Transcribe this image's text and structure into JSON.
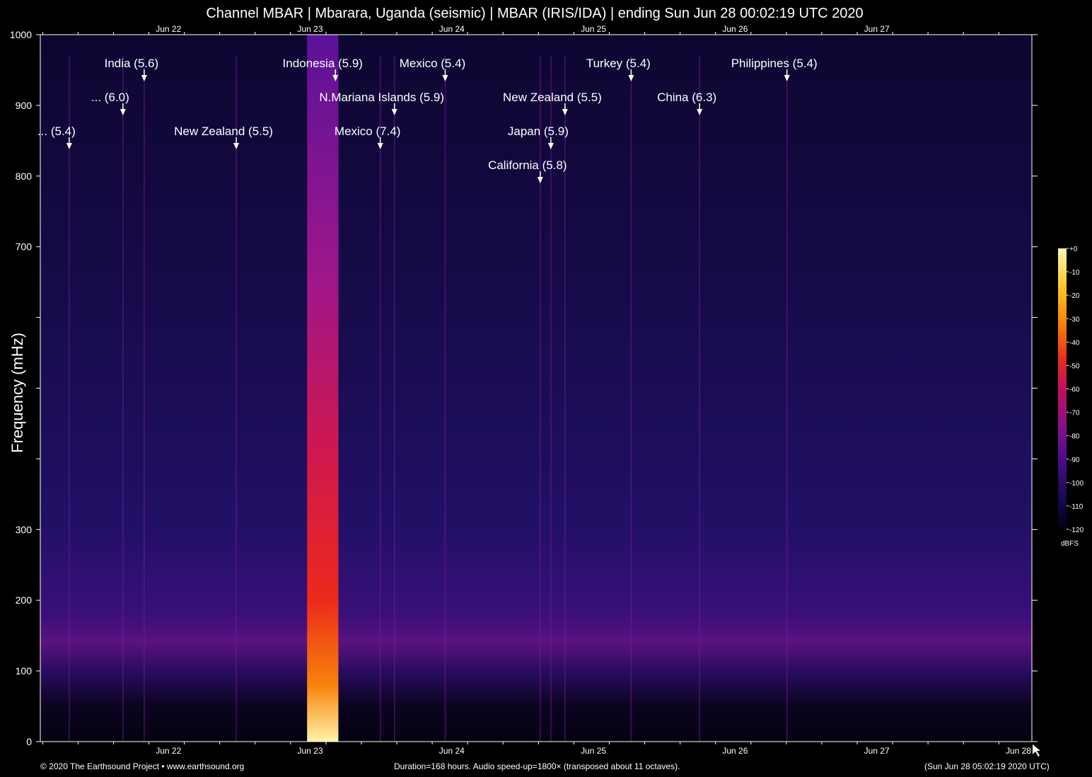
{
  "chart_data": {
    "type": "heatmap",
    "title": "Channel MBAR | Mbarara, Uganda (seismic) | MBAR (IRIS/IDA) | ending Sun Jun 28 00:02:19 UTC 2020",
    "xlabel": "",
    "ylabel": "Frequency (mHz)",
    "ylim": [
      0,
      1000
    ],
    "xlim_hours": [
      0,
      168
    ],
    "y_ticks": [
      {
        "value": 0,
        "label": "0"
      },
      {
        "value": 100,
        "label": "100"
      },
      {
        "value": 200,
        "label": "200"
      },
      {
        "value": 300,
        "label": "300"
      },
      {
        "value": 400,
        "label": ""
      },
      {
        "value": 500,
        "label": ""
      },
      {
        "value": 600,
        "label": ""
      },
      {
        "value": 700,
        "label": "700"
      },
      {
        "value": 800,
        "label": "800"
      },
      {
        "value": 900,
        "label": "900"
      },
      {
        "value": 1000,
        "label": "1000"
      }
    ],
    "x_day_labels": [
      {
        "label": "Jun 22",
        "hour": 19.2
      },
      {
        "label": "Jun 23",
        "hour": 43.2
      },
      {
        "label": "Jun 24",
        "hour": 67.2
      },
      {
        "label": "Jun 25",
        "hour": 91.2
      },
      {
        "label": "Jun 26",
        "hour": 115.2
      },
      {
        "label": "Jun 27",
        "hour": 139.2
      },
      {
        "label": "Jun 28",
        "hour": 163.2
      }
    ],
    "events": [
      {
        "label": "... (5.4)",
        "hour": 4.9,
        "row": 2
      },
      {
        "label": "... (6.0)",
        "hour": 14.0,
        "row": 1
      },
      {
        "label": "India (5.6)",
        "hour": 17.6,
        "row": 0
      },
      {
        "label": "New Zealand (5.5)",
        "hour": 33.2,
        "row": 2
      },
      {
        "label": "Indonesia (5.9)",
        "hour": 50.0,
        "row": 0
      },
      {
        "label": "N.Mariana Islands (5.9)",
        "hour": 60.0,
        "row": 1
      },
      {
        "label": "Mexico (7.4)",
        "hour": 57.6,
        "row": 2
      },
      {
        "label": "Mexico (5.4)",
        "hour": 68.6,
        "row": 0
      },
      {
        "label": "New Zealand (5.5)",
        "hour": 88.9,
        "row": 1
      },
      {
        "label": "Japan (5.9)",
        "hour": 86.5,
        "row": 2
      },
      {
        "label": "California (5.8)",
        "hour": 84.7,
        "row": 3
      },
      {
        "label": "Turkey (5.4)",
        "hour": 100.1,
        "row": 0
      },
      {
        "label": "China (6.3)",
        "hour": 111.7,
        "row": 1
      },
      {
        "label": "Philippines (5.4)",
        "hour": 126.5,
        "row": 0
      }
    ],
    "colorbar": {
      "unit": "dBFS",
      "range": [
        -120,
        0
      ],
      "ticks": [
        {
          "value": 0,
          "label": "+0"
        },
        {
          "value": -10,
          "label": "-10"
        },
        {
          "value": -20,
          "label": "-20"
        },
        {
          "value": -30,
          "label": "-30"
        },
        {
          "value": -40,
          "label": "-40"
        },
        {
          "value": -50,
          "label": "-50"
        },
        {
          "value": -60,
          "label": "-60"
        },
        {
          "value": -70,
          "label": "-70"
        },
        {
          "value": -80,
          "label": "-80"
        },
        {
          "value": -90,
          "label": "-90"
        },
        {
          "value": -100,
          "label": "-100"
        },
        {
          "value": -110,
          "label": "-110"
        },
        {
          "value": -120,
          "label": "-120"
        }
      ],
      "colors": [
        "#000010",
        "#1a0a55",
        "#4b0c8c",
        "#8a0f8c",
        "#c2105e",
        "#e82a1e",
        "#f77a0a",
        "#fcc21c",
        "#fff6b0"
      ]
    },
    "background_color": "#1c1058",
    "strong_band": {
      "start_hour": 45.2,
      "end_hour": 50.5,
      "label": "Indonesia (5.9)"
    }
  },
  "footer": {
    "left": "© 2020 The Earthsound Project • www.earthsound.org",
    "center": "Duration=168 hours. Audio speed-up=1800× (transposed about 11 octaves).",
    "right": "(Sun Jun 28 05:02:19 2020 UTC)"
  }
}
